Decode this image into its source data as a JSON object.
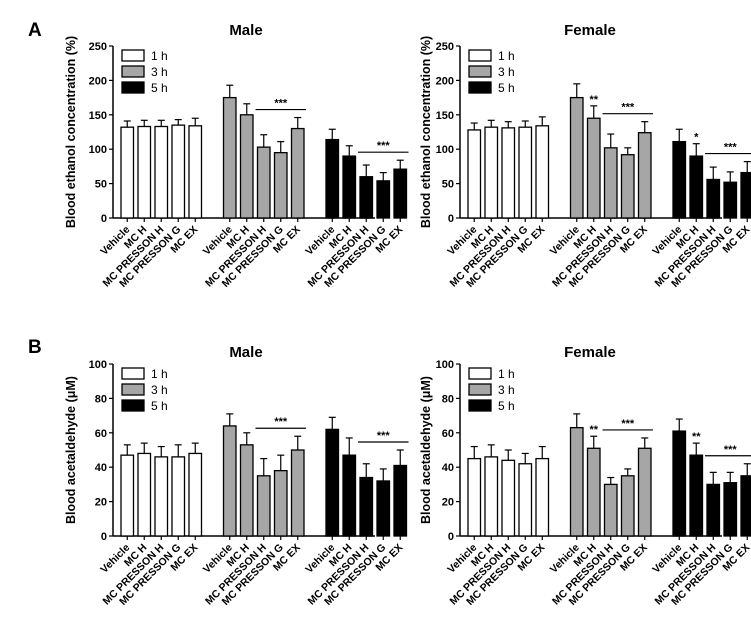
{
  "panels": [
    {
      "letter": "A"
    },
    {
      "letter": "B"
    }
  ],
  "legend": [
    {
      "label": "1 h",
      "color": "#ffffff"
    },
    {
      "label": "3 h",
      "color": "#a6a6a6"
    },
    {
      "label": "5 h",
      "color": "#000000"
    }
  ],
  "chart_data": [
    {
      "type": "bar",
      "title": "Male",
      "ylabel": "Blood ethanol concentration (%)",
      "ylim": [
        0,
        250
      ],
      "yticks": [
        0,
        50,
        100,
        150,
        200,
        250
      ],
      "categories": [
        "Vehicle",
        "MC H",
        "MC PRESSON H",
        "MC PRESSON G",
        "MC EX"
      ],
      "series": [
        {
          "name": "1 h",
          "values": [
            132,
            133,
            133,
            135,
            134
          ],
          "errors": [
            9,
            9,
            9,
            8,
            11
          ]
        },
        {
          "name": "3 h",
          "values": [
            175,
            150,
            103,
            95,
            130
          ],
          "errors": [
            18,
            16,
            18,
            16,
            16
          ]
        },
        {
          "name": "5 h",
          "values": [
            114,
            90,
            60,
            54,
            71
          ],
          "errors": [
            15,
            15,
            17,
            12,
            13
          ]
        }
      ],
      "significance": [
        {
          "series": "3 h",
          "from": 2,
          "to": 4,
          "label": "***"
        },
        {
          "series": "5 h",
          "from": 2,
          "to": 4,
          "label": "***"
        }
      ],
      "legend_position": "top-left"
    },
    {
      "type": "bar",
      "title": "Female",
      "ylabel": "Blood ethanol concentration (%)",
      "ylim": [
        0,
        250
      ],
      "yticks": [
        0,
        50,
        100,
        150,
        200,
        250
      ],
      "categories": [
        "Vehicle",
        "MC H",
        "MC PRESSON H",
        "MC PRESSON G",
        "MC EX"
      ],
      "series": [
        {
          "name": "1 h",
          "values": [
            128,
            132,
            131,
            132,
            134
          ],
          "errors": [
            10,
            10,
            9,
            9,
            13
          ]
        },
        {
          "name": "3 h",
          "values": [
            175,
            145,
            102,
            92,
            124
          ],
          "errors": [
            20,
            18,
            20,
            10,
            16
          ]
        },
        {
          "name": "5 h",
          "values": [
            111,
            90,
            56,
            52,
            66
          ],
          "errors": [
            18,
            18,
            18,
            15,
            16
          ]
        }
      ],
      "significance": [
        {
          "series": "3 h",
          "at": 1,
          "label": "**"
        },
        {
          "series": "3 h",
          "from": 2,
          "to": 4,
          "label": "***"
        },
        {
          "series": "5 h",
          "at": 1,
          "label": "*"
        },
        {
          "series": "5 h",
          "from": 2,
          "to": 4,
          "label": "***"
        }
      ],
      "legend_position": "top-left"
    },
    {
      "type": "bar",
      "title": "Male",
      "ylabel": "Blood acetaldehyde (μM)",
      "ylim": [
        0,
        100
      ],
      "yticks": [
        0,
        20,
        40,
        60,
        80,
        100
      ],
      "categories": [
        "Vehicle",
        "MC H",
        "MC PRESSON H",
        "MC PRESSON G",
        "MC EX"
      ],
      "series": [
        {
          "name": "1 h",
          "values": [
            47,
            48,
            46,
            46,
            48
          ],
          "errors": [
            6,
            6,
            6,
            7,
            6
          ]
        },
        {
          "name": "3 h",
          "values": [
            64,
            53,
            35,
            38,
            50
          ],
          "errors": [
            7,
            7,
            10,
            9,
            8
          ]
        },
        {
          "name": "5 h",
          "values": [
            62,
            47,
            34,
            32,
            41
          ],
          "errors": [
            7,
            10,
            8,
            7,
            9
          ]
        }
      ],
      "significance": [
        {
          "series": "3 h",
          "from": 2,
          "to": 4,
          "label": "***"
        },
        {
          "series": "5 h",
          "from": 2,
          "to": 4,
          "label": "***"
        }
      ],
      "legend_position": "top-left"
    },
    {
      "type": "bar",
      "title": "Female",
      "ylabel": "Blood acetaldehyde (μM)",
      "ylim": [
        0,
        100
      ],
      "yticks": [
        0,
        20,
        40,
        60,
        80,
        100
      ],
      "categories": [
        "Vehicle",
        "MC H",
        "MC PRESSON H",
        "MC PRESSON G",
        "MC EX"
      ],
      "series": [
        {
          "name": "1 h",
          "values": [
            45,
            46,
            44,
            42,
            45
          ],
          "errors": [
            7,
            7,
            6,
            6,
            7
          ]
        },
        {
          "name": "3 h",
          "values": [
            63,
            51,
            30,
            35,
            51
          ],
          "errors": [
            8,
            7,
            4,
            4,
            6
          ]
        },
        {
          "name": "5 h",
          "values": [
            61,
            47,
            30,
            31,
            35
          ],
          "errors": [
            7,
            7,
            7,
            6,
            7
          ]
        }
      ],
      "significance": [
        {
          "series": "3 h",
          "at": 1,
          "label": "**"
        },
        {
          "series": "3 h",
          "from": 2,
          "to": 4,
          "label": "***"
        },
        {
          "series": "5 h",
          "at": 1,
          "label": "**"
        },
        {
          "series": "5 h",
          "from": 2,
          "to": 4,
          "label": "***"
        }
      ],
      "legend_position": "top-left"
    }
  ]
}
